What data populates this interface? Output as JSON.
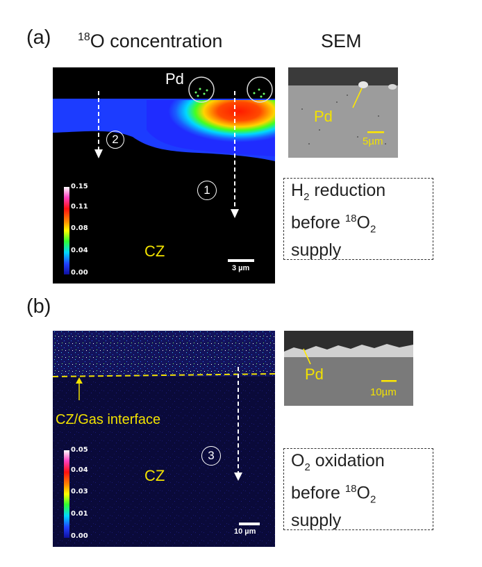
{
  "headers": {
    "panel_a": "(a)",
    "panel_b": "(b)",
    "conc_sup": "18",
    "conc_text": "O concentration",
    "sem": "SEM"
  },
  "panel_a": {
    "pd_label": "Pd",
    "marker_1": "1",
    "marker_2": "2",
    "cz_label": "CZ",
    "scale_bar": "3 µm",
    "colorbar_ticks": [
      "0.15",
      "0.11",
      "0.08",
      "0.04",
      "0.00"
    ],
    "sem_pd": "Pd",
    "sem_scale": "5µm",
    "note": {
      "l1_pre": "H",
      "l1_sub": "2",
      "l1_post": " reduction",
      "l2_pre": "before ",
      "l2_sup": "18",
      "l2_mid": "O",
      "l2_sub": "2",
      "l3": "supply"
    }
  },
  "panel_b": {
    "marker_3": "3",
    "cz_label": "CZ",
    "interface_label": "CZ/Gas interface",
    "scale_bar": "10 µm",
    "colorbar_ticks": [
      "0.05",
      "0.04",
      "0.03",
      "0.01",
      "0.00"
    ],
    "sem_pd": "Pd",
    "sem_scale": "10µm",
    "note": {
      "l1_pre": "O",
      "l1_sub": "2",
      "l1_post": " oxidation",
      "l2_pre": "before ",
      "l2_sup": "18",
      "l2_mid": "O",
      "l2_sub": "2",
      "l3": "supply"
    }
  }
}
